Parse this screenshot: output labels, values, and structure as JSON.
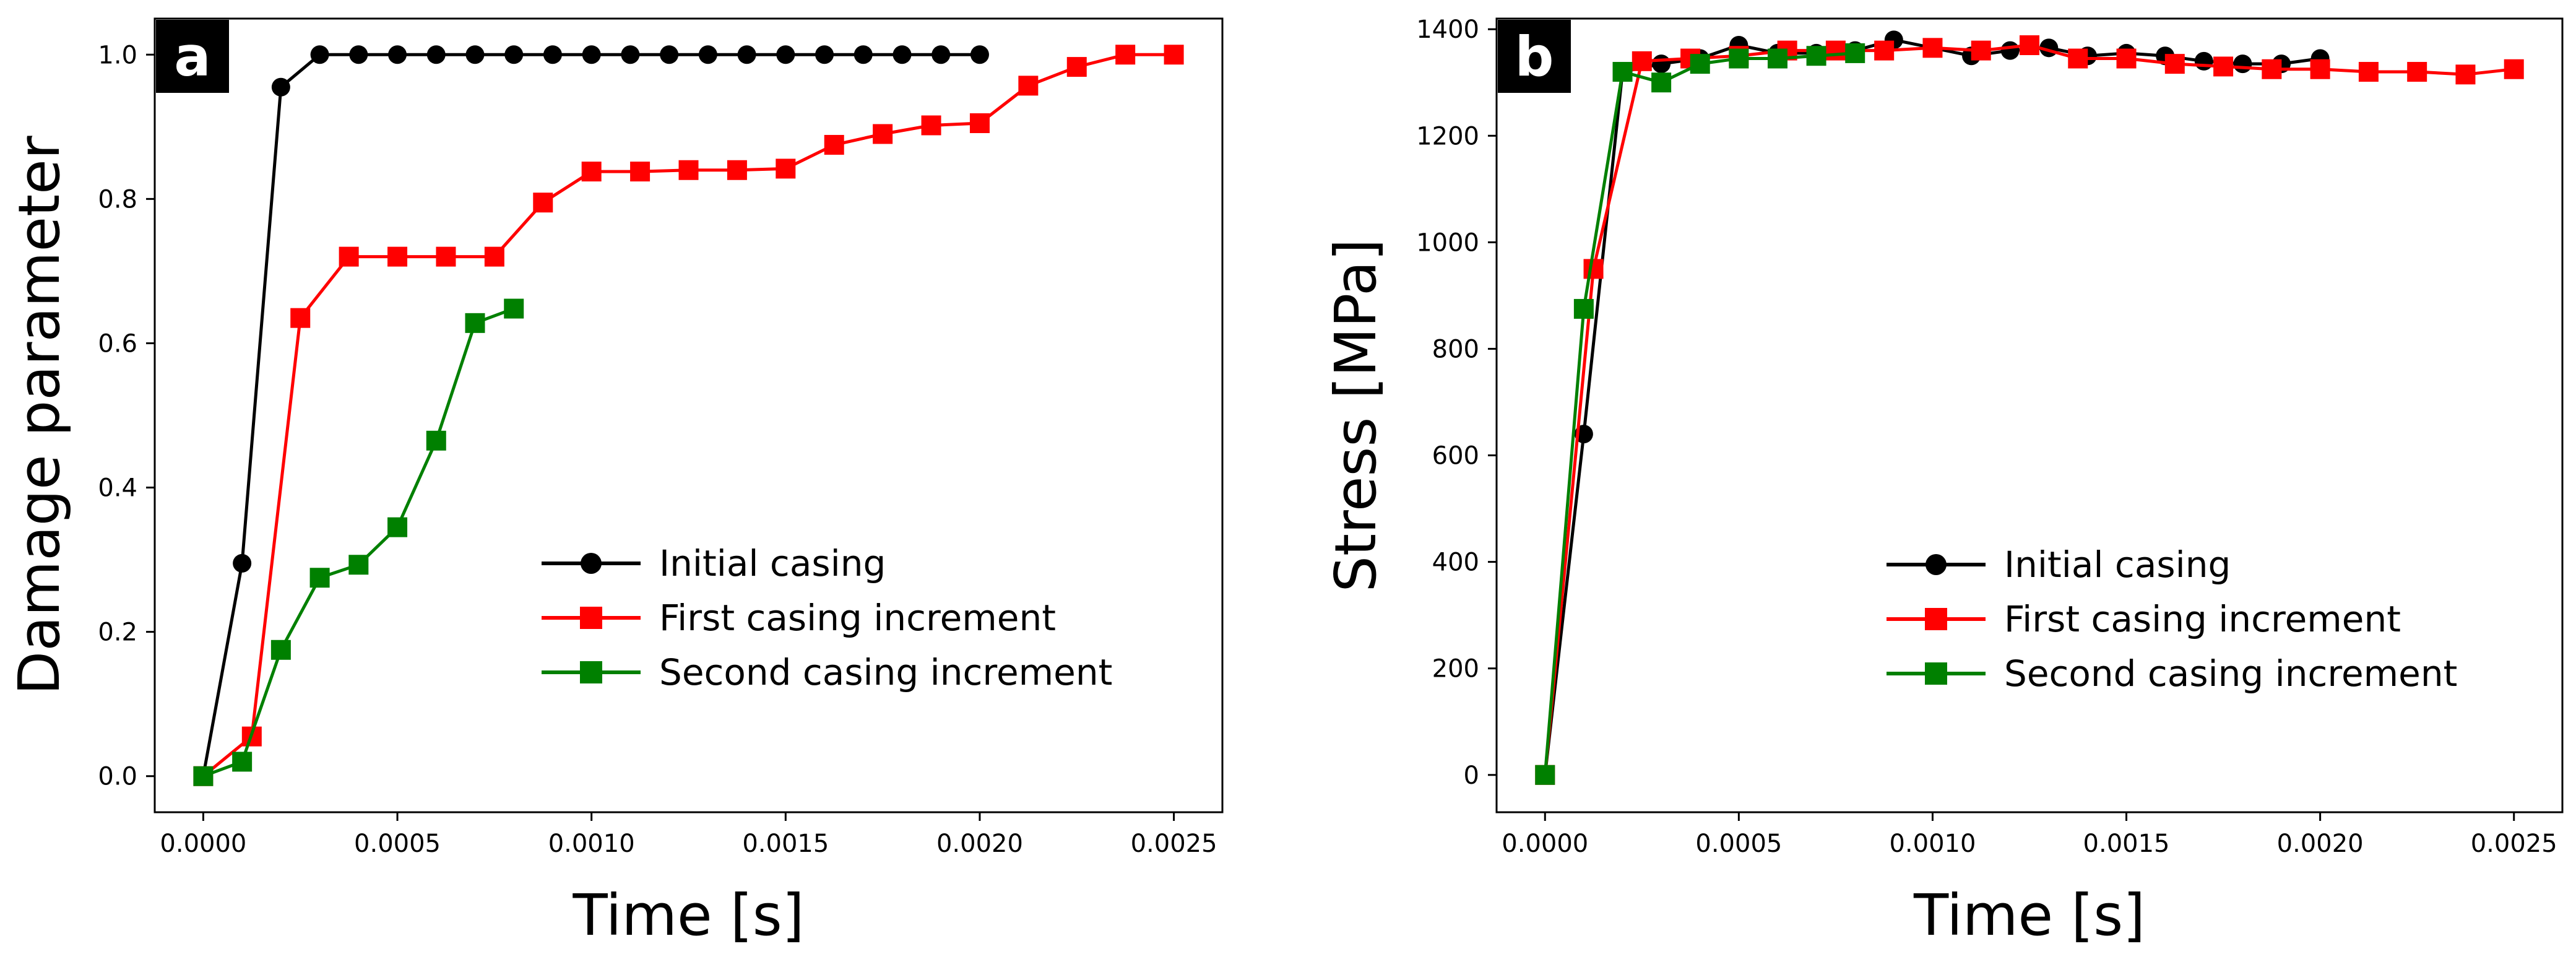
{
  "chart_data": [
    {
      "type": "line",
      "panel_label": "a",
      "title": "",
      "xlabel": "Time [s]",
      "ylabel": "Damage parameter",
      "xlim": [
        -0.000125,
        0.002625
      ],
      "ylim": [
        -0.05,
        1.05
      ],
      "xticks": [
        "0.0000",
        "0.0005",
        "0.0010",
        "0.0015",
        "0.0020",
        "0.0025"
      ],
      "xtick_values": [
        0,
        0.0005,
        0.001,
        0.0015,
        0.002,
        0.0025
      ],
      "yticks": [
        "0.0",
        "0.2",
        "0.4",
        "0.6",
        "0.8",
        "1.0"
      ],
      "ytick_values": [
        0,
        0.2,
        0.4,
        0.6,
        0.8,
        1.0
      ],
      "grid": false,
      "legend_position": "lower-right",
      "series": [
        {
          "name": "Initial casing",
          "color": "#000000",
          "marker": "circle",
          "x": [
            0,
            0.0001,
            0.0002,
            0.0003,
            0.0004,
            0.0005,
            0.0006,
            0.0007,
            0.0008,
            0.0009,
            0.001,
            0.0011,
            0.0012,
            0.0013,
            0.0014,
            0.0015,
            0.0016,
            0.0017,
            0.0018,
            0.0019,
            0.002
          ],
          "y": [
            0.0,
            0.295,
            0.955,
            1.0,
            1.0,
            1.0,
            1.0,
            1.0,
            1.0,
            1.0,
            1.0,
            1.0,
            1.0,
            1.0,
            1.0,
            1.0,
            1.0,
            1.0,
            1.0,
            1.0,
            1.0
          ]
        },
        {
          "name": "First casing increment",
          "color": "#ff0000",
          "marker": "square",
          "x": [
            0,
            0.000125,
            0.00025,
            0.000375,
            0.0005,
            0.000625,
            0.00075,
            0.000875,
            0.001,
            0.001125,
            0.00125,
            0.001375,
            0.0015,
            0.001625,
            0.00175,
            0.001875,
            0.002,
            0.002125,
            0.00225,
            0.002375,
            0.0025
          ],
          "y": [
            0.0,
            0.055,
            0.635,
            0.72,
            0.72,
            0.72,
            0.72,
            0.795,
            0.838,
            0.838,
            0.84,
            0.84,
            0.842,
            0.875,
            0.89,
            0.902,
            0.905,
            0.957,
            0.983,
            1.0,
            1.0
          ]
        },
        {
          "name": "Second casing increment",
          "color": "#008000",
          "marker": "square",
          "x": [
            0,
            0.0001,
            0.0002,
            0.0003,
            0.0004,
            0.0005,
            0.0006,
            0.0007,
            0.0008
          ],
          "y": [
            0.0,
            0.02,
            0.175,
            0.275,
            0.293,
            0.345,
            0.465,
            0.628,
            0.648
          ]
        }
      ]
    },
    {
      "type": "line",
      "panel_label": "b",
      "title": "",
      "xlabel": "Time [s]",
      "ylabel": "Stress [MPa]",
      "xlim": [
        -0.000125,
        0.002625
      ],
      "ylim": [
        -70,
        1420
      ],
      "xticks": [
        "0.0000",
        "0.0005",
        "0.0010",
        "0.0015",
        "0.0020",
        "0.0025"
      ],
      "xtick_values": [
        0,
        0.0005,
        0.001,
        0.0015,
        0.002,
        0.0025
      ],
      "yticks": [
        "0",
        "200",
        "400",
        "600",
        "800",
        "1000",
        "1200",
        "1400"
      ],
      "ytick_values": [
        0,
        200,
        400,
        600,
        800,
        1000,
        1200,
        1400
      ],
      "grid": false,
      "legend_position": "lower-right",
      "series": [
        {
          "name": "Initial casing",
          "color": "#000000",
          "marker": "circle",
          "x": [
            0,
            0.0001,
            0.0002,
            0.0003,
            0.0004,
            0.0005,
            0.0006,
            0.0007,
            0.0008,
            0.0009,
            0.001,
            0.0011,
            0.0012,
            0.0013,
            0.0014,
            0.0015,
            0.0016,
            0.0017,
            0.0018,
            0.0019,
            0.002
          ],
          "y": [
            0,
            640,
            1320,
            1335,
            1345,
            1370,
            1355,
            1355,
            1360,
            1380,
            1365,
            1350,
            1360,
            1365,
            1350,
            1355,
            1350,
            1340,
            1335,
            1335,
            1345
          ]
        },
        {
          "name": "First casing increment",
          "color": "#ff0000",
          "marker": "square",
          "x": [
            0,
            0.000125,
            0.00025,
            0.000375,
            0.0005,
            0.000625,
            0.00075,
            0.000875,
            0.001,
            0.001125,
            0.00125,
            0.001375,
            0.0015,
            0.001625,
            0.00175,
            0.001875,
            0.002,
            0.002125,
            0.00225,
            0.002375,
            0.0025
          ],
          "y": [
            0,
            950,
            1340,
            1345,
            1350,
            1360,
            1360,
            1360,
            1365,
            1360,
            1370,
            1345,
            1345,
            1335,
            1330,
            1325,
            1325,
            1320,
            1320,
            1315,
            1325
          ]
        },
        {
          "name": "Second casing increment",
          "color": "#008000",
          "marker": "square",
          "x": [
            0,
            0.0001,
            0.0002,
            0.0003,
            0.0004,
            0.0005,
            0.0006,
            0.0007,
            0.0008
          ],
          "y": [
            0,
            875,
            1320,
            1300,
            1335,
            1345,
            1345,
            1350,
            1355
          ]
        }
      ]
    }
  ]
}
